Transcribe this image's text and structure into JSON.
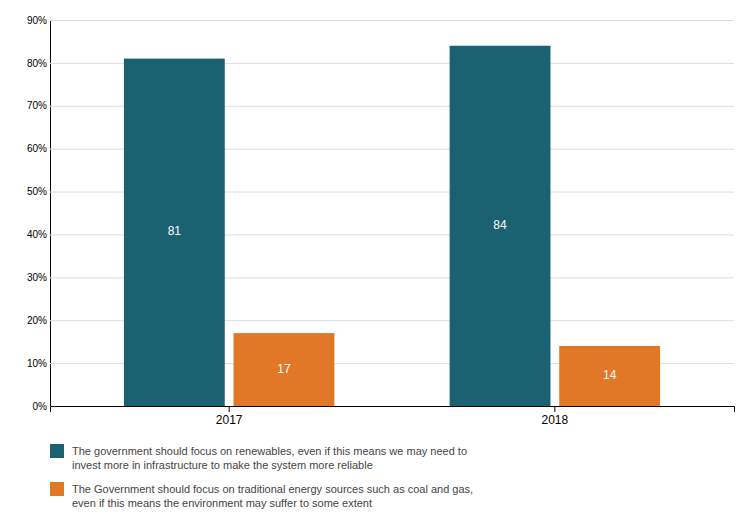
{
  "chart_data": {
    "type": "bar",
    "categories": [
      "2017",
      "2018"
    ],
    "series": [
      {
        "name": "The government should focus on renewables, even if this means we may need to\ninvest more in infrastructure to make the system more reliable",
        "color": "#1a6272",
        "values": [
          81,
          84
        ]
      },
      {
        "name": "The Government should focus on traditional energy sources such as coal and gas,\neven if this means the environment may suffer to some extent",
        "color": "#e07828",
        "values": [
          17,
          14
        ]
      }
    ],
    "ylim": [
      0,
      90
    ],
    "yticks": [
      {
        "value": 0,
        "label": "0%"
      },
      {
        "value": 10,
        "label": "10%"
      },
      {
        "value": 20,
        "label": "20%"
      },
      {
        "value": 30,
        "label": "30%"
      },
      {
        "value": 40,
        "label": "40%"
      },
      {
        "value": 50,
        "label": "50%"
      },
      {
        "value": 60,
        "label": "60%"
      },
      {
        "value": 70,
        "label": "70%"
      },
      {
        "value": 80,
        "label": "80%"
      },
      {
        "value": 90,
        "label": "90%"
      }
    ],
    "grid": true,
    "data_labels": true,
    "legend": "bottom"
  }
}
